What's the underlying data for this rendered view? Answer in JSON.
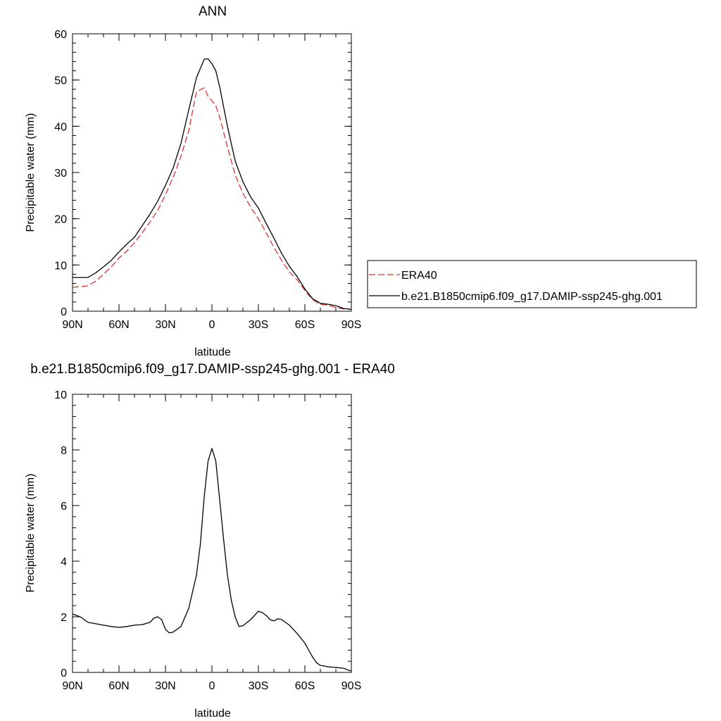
{
  "chart_data": [
    {
      "type": "line",
      "title": "ANN",
      "xlabel": "latitude",
      "ylabel": "Precipitable water (mm)",
      "xlim": [
        90,
        -90
      ],
      "ylim": [
        0,
        60
      ],
      "x_ticks": [
        90,
        60,
        30,
        0,
        -30,
        -60,
        -90
      ],
      "x_tick_labels": [
        "90N",
        "60N",
        "30N",
        "0",
        "30S",
        "60S",
        "90S"
      ],
      "y_ticks": [
        0,
        10,
        20,
        30,
        40,
        50,
        60
      ],
      "y_tick_labels": [
        "0",
        "10",
        "20",
        "30",
        "40",
        "50",
        "60"
      ],
      "grid": false,
      "legend_position": "outside-right",
      "series": [
        {
          "name": "ERA40",
          "color": "#e03030",
          "dash": "dashed",
          "x": [
            90,
            85,
            80,
            75,
            70,
            65,
            60,
            55,
            50,
            45,
            40,
            35,
            30,
            25,
            20,
            15,
            10,
            5,
            2.5,
            0,
            -2.5,
            -5,
            -10,
            -15,
            -20,
            -25,
            -30,
            -35,
            -40,
            -45,
            -50,
            -55,
            -60,
            -65,
            -70,
            -75,
            -80,
            -85,
            -90
          ],
          "y": [
            5.2,
            5.3,
            5.5,
            6.5,
            8.0,
            9.6,
            11.5,
            13.0,
            14.8,
            17.0,
            19.3,
            21.8,
            25.2,
            29.0,
            33.5,
            39.0,
            47.5,
            48.3,
            46.5,
            45.5,
            44.5,
            42.0,
            35.5,
            29.5,
            25.5,
            22.5,
            20.0,
            17.0,
            13.8,
            11.0,
            8.5,
            6.8,
            4.5,
            2.5,
            1.5,
            1.3,
            0.8,
            0.5,
            0.4
          ]
        },
        {
          "name": "b.e21.B1850cmip6.f09_g17.DAMIP-ssp245-ghg.001",
          "color": "#000000",
          "dash": "solid",
          "x": [
            90,
            85,
            80,
            75,
            70,
            65,
            60,
            55,
            50,
            45,
            40,
            35,
            30,
            25,
            20,
            15,
            10,
            5,
            2.5,
            0,
            -2.5,
            -5,
            -10,
            -15,
            -20,
            -25,
            -30,
            -35,
            -40,
            -45,
            -50,
            -55,
            -60,
            -65,
            -70,
            -75,
            -80,
            -85,
            -90
          ],
          "y": [
            7.3,
            7.3,
            7.3,
            8.3,
            9.6,
            11.0,
            12.8,
            14.5,
            16.0,
            18.5,
            21.0,
            23.8,
            27.2,
            31.0,
            36.3,
            43.5,
            50.5,
            54.5,
            54.6,
            53.5,
            52.0,
            48.5,
            40.0,
            32.5,
            28.0,
            24.7,
            22.3,
            19.0,
            15.8,
            12.5,
            9.7,
            7.5,
            4.8,
            2.7,
            1.7,
            1.5,
            1.2,
            0.6,
            0.4
          ]
        }
      ]
    },
    {
      "type": "line",
      "title": "b.e21.B1850cmip6.f09_g17.DAMIP-ssp245-ghg.001 - ERA40",
      "xlabel": "latitude",
      "ylabel": "Precipitable water (mm)",
      "xlim": [
        90,
        -90
      ],
      "ylim": [
        0,
        10
      ],
      "x_ticks": [
        90,
        60,
        30,
        0,
        -30,
        -60,
        -90
      ],
      "x_tick_labels": [
        "90N",
        "60N",
        "30N",
        "0",
        "30S",
        "60S",
        "90S"
      ],
      "y_ticks": [
        0,
        2,
        4,
        6,
        8,
        10
      ],
      "y_tick_labels": [
        "0",
        "2",
        "4",
        "6",
        "8",
        "10"
      ],
      "grid": false,
      "series": [
        {
          "color": "#000000",
          "dash": "solid",
          "x": [
            90,
            85,
            80,
            75,
            70,
            65,
            60,
            55,
            50,
            45,
            40,
            37.5,
            35,
            32.5,
            30,
            27.5,
            25,
            20,
            15,
            10,
            7.5,
            5,
            2.5,
            0,
            -2.5,
            -5,
            -7.5,
            -10,
            -12.5,
            -15,
            -17.5,
            -20,
            -25,
            -30,
            -32.5,
            -35,
            -37.5,
            -40,
            -42.5,
            -45,
            -50,
            -55,
            -60,
            -62.5,
            -65,
            -67.5,
            -70,
            -72.5,
            -75,
            -80,
            -85,
            -88,
            -90
          ],
          "y": [
            2.1,
            2.0,
            1.8,
            1.75,
            1.7,
            1.65,
            1.62,
            1.65,
            1.7,
            1.72,
            1.8,
            1.95,
            2.0,
            1.9,
            1.55,
            1.42,
            1.45,
            1.65,
            2.3,
            3.5,
            4.6,
            6.3,
            7.6,
            8.05,
            7.6,
            6.2,
            4.8,
            3.5,
            2.6,
            2.0,
            1.65,
            1.68,
            1.9,
            2.2,
            2.15,
            2.05,
            1.9,
            1.85,
            1.93,
            1.9,
            1.7,
            1.4,
            1.05,
            0.8,
            0.55,
            0.35,
            0.25,
            0.23,
            0.2,
            0.18,
            0.15,
            0.08,
            0.05
          ]
        }
      ]
    }
  ]
}
